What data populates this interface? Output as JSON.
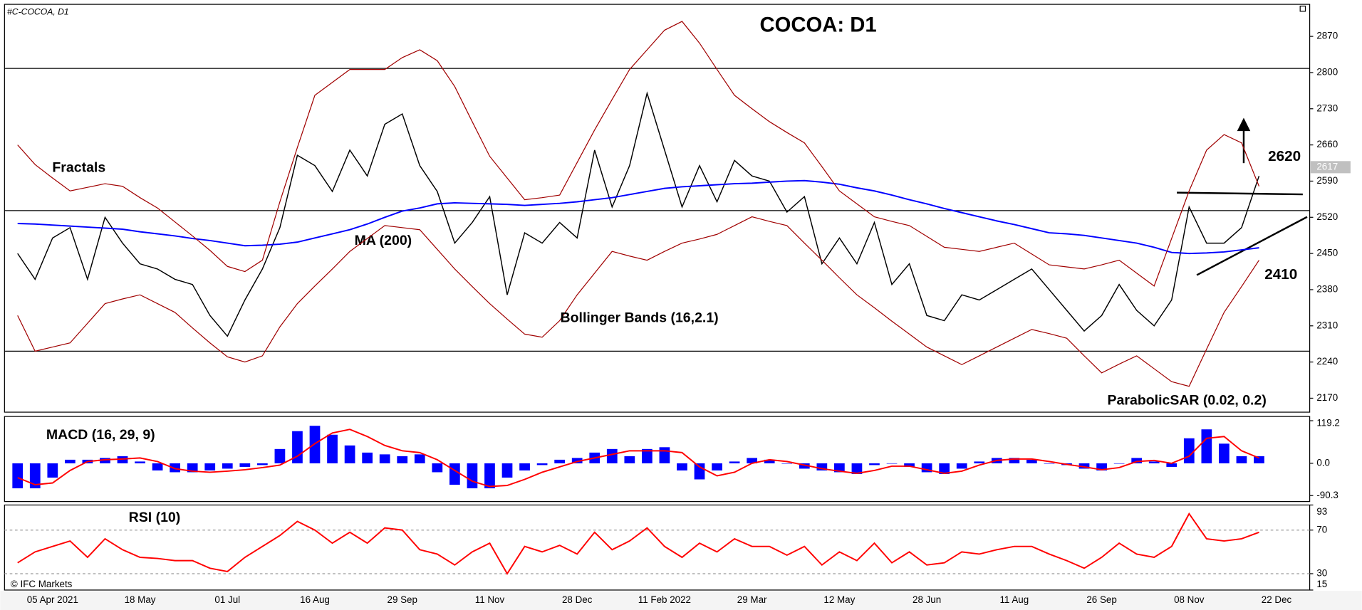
{
  "chart_data": [
    {
      "type": "line",
      "title": "COCOA: D1",
      "subtitle": "#C-COCOA, D1",
      "categories": [
        null,
        null,
        "05 Apr 2021",
        null,
        null,
        null,
        null,
        "18 May",
        null,
        null,
        null,
        null,
        "01 Jul",
        null,
        null,
        null,
        null,
        "16 Aug",
        null,
        null,
        null,
        null,
        "29 Sep",
        null,
        null,
        null,
        null,
        "11 Nov",
        null,
        null,
        null,
        null,
        "28 Dec",
        null,
        null,
        null,
        null,
        "11 Feb 2022",
        null,
        null,
        null,
        null,
        "29 Mar",
        null,
        null,
        null,
        null,
        "12 May",
        null,
        null,
        null,
        null,
        "28 Jun",
        null,
        null,
        null,
        null,
        "11 Aug",
        null,
        null,
        null,
        null,
        "26 Sep",
        null,
        null,
        null,
        null,
        "08 Nov",
        null,
        null,
        null,
        null,
        "22 Dec",
        null
      ],
      "series": [
        {
          "color": "#000000",
          "values": [
            2450,
            2400,
            2480,
            2500,
            2400,
            2520,
            2470,
            2430,
            2420,
            2400,
            2390,
            2330,
            2290,
            2360,
            2420,
            2500,
            2640,
            2620,
            2570,
            2650,
            2600,
            2700,
            2720,
            2620,
            2570,
            2470,
            2510,
            2560,
            2370,
            2490,
            2470,
            2510,
            2480,
            2650,
            2540,
            2620,
            2760,
            2650,
            2540,
            2620,
            2550,
            2630,
            2600,
            2590,
            2530,
            2560,
            2430,
            2480,
            2430,
            2510,
            2390,
            2430,
            2330,
            2320,
            2370,
            2360,
            2380,
            2400,
            2420,
            2380,
            2340,
            2300,
            2330,
            2390,
            2340,
            2310,
            2360,
            2540,
            2470,
            2470,
            2500,
            2600,
            null,
            null
          ]
        },
        {
          "name": "MA (200)",
          "color": "#0000ff",
          "values": [
            2508,
            2507,
            2505,
            2503,
            2501,
            2499,
            2497,
            2492,
            2488,
            2484,
            2479,
            2475,
            2470,
            2465,
            2466,
            2468,
            2472,
            2480,
            2488,
            2496,
            2507,
            2520,
            2532,
            2538,
            2546,
            2548,
            2547,
            2546,
            2545,
            2543,
            2545,
            2547,
            2550,
            2554,
            2558,
            2564,
            2570,
            2576,
            2579,
            2581,
            2583,
            2585,
            2586,
            2588,
            2590,
            2591,
            2588,
            2584,
            2577,
            2571,
            2563,
            2554,
            2546,
            2537,
            2529,
            2521,
            2513,
            2506,
            2498,
            2490,
            2488,
            2485,
            2480,
            2475,
            2470,
            2462,
            2452,
            2450,
            2451,
            2453,
            2457,
            2461,
            null,
            null
          ]
        },
        {
          "name": "Bollinger Bands (16,2.1)",
          "color": "#a00000",
          "upper": [
            2660,
            2622,
            2596,
            2571,
            2578,
            2585,
            2580,
            2558,
            2538,
            2511,
            2484,
            2456,
            2425,
            2415,
            2437,
            2550,
            2655,
            2756,
            2781,
            2806,
            2806,
            2806,
            2829,
            2844,
            2823,
            2773,
            2705,
            2638,
            2596,
            2554,
            2558,
            2563,
            2626,
            2689,
            2748,
            2806,
            2844,
            2882,
            2899,
            2857,
            2806,
            2756,
            2730,
            2705,
            2684,
            2664,
            2618,
            2571,
            2546,
            2521,
            2512,
            2504,
            2483,
            2462,
            2458,
            2454,
            2462,
            2470,
            2449,
            2428,
            2424,
            2420,
            2428,
            2437,
            2412,
            2387,
            2479,
            2571,
            2650,
            2680,
            2664,
            2580,
            null,
            null
          ],
          "lower": [
            2330,
            2261,
            2269,
            2277,
            2315,
            2353,
            2362,
            2370,
            2353,
            2336,
            2306,
            2277,
            2250,
            2240,
            2252,
            2308,
            2353,
            2387,
            2420,
            2454,
            2479,
            2504,
            2500,
            2496,
            2458,
            2420,
            2386,
            2353,
            2323,
            2294,
            2288,
            2320,
            2370,
            2412,
            2454,
            2445,
            2437,
            2454,
            2470,
            2478,
            2487,
            2504,
            2521,
            2512,
            2504,
            2470,
            2437,
            2403,
            2370,
            2345,
            2319,
            2294,
            2269,
            2252,
            2235,
            2252,
            2269,
            2286,
            2303,
            2295,
            2286,
            2252,
            2219,
            2236,
            2252,
            2227,
            2202,
            2193,
            2265,
            2336,
            2386,
            2437,
            null,
            null
          ]
        }
      ],
      "annotations": [
        "Fractals",
        "ParabolicSAR (0.02, 0.2)"
      ],
      "price_labels": [
        2620,
        2410
      ],
      "hlines": [
        2808,
        2533,
        2261
      ],
      "last_price": 2617,
      "watermark": "© IFC Markets",
      "ylim": [
        2143,
        2932
      ],
      "yticks": [
        2170,
        2240,
        2310,
        2380,
        2450,
        2520,
        2590,
        2660,
        2730,
        2800,
        2870
      ],
      "grid": false
    },
    {
      "type": "bar",
      "title": "MACD (16, 29, 9)",
      "series": [
        {
          "kind": "bar",
          "color": "#0000ff",
          "values": [
            -70,
            -70,
            -40,
            10,
            10,
            15,
            20,
            5,
            -20,
            -25,
            -25,
            -20,
            -15,
            -10,
            -5,
            40,
            90,
            105,
            80,
            50,
            30,
            25,
            20,
            25,
            -25,
            -60,
            -70,
            -70,
            -40,
            -20,
            -5,
            10,
            15,
            30,
            40,
            20,
            40,
            45,
            -20,
            -45,
            -20,
            5,
            15,
            10,
            0,
            -15,
            -20,
            -25,
            -30,
            -5,
            0,
            -10,
            -25,
            -30,
            -15,
            5,
            15,
            15,
            10,
            0,
            -5,
            -15,
            -20,
            0,
            15,
            5,
            -10,
            70,
            95,
            55,
            20,
            20,
            null,
            null
          ]
        },
        {
          "kind": "line",
          "color": "#ff0000",
          "values": [
            -40,
            -60,
            -55,
            -20,
            5,
            10,
            12,
            15,
            5,
            -15,
            -22,
            -25,
            -22,
            -18,
            -12,
            -5,
            20,
            55,
            85,
            95,
            75,
            50,
            35,
            30,
            10,
            -20,
            -50,
            -65,
            -62,
            -45,
            -25,
            -10,
            5,
            15,
            25,
            35,
            35,
            35,
            30,
            -10,
            -35,
            -25,
            0,
            10,
            5,
            -5,
            -15,
            -22,
            -28,
            -20,
            -8,
            -8,
            -18,
            -28,
            -22,
            -5,
            8,
            12,
            12,
            5,
            -3,
            -10,
            -18,
            -12,
            5,
            8,
            0,
            20,
            70,
            75,
            35,
            15,
            null,
            null
          ]
        }
      ],
      "ylim": [
        -107,
        131
      ],
      "yticks": [
        119.2,
        {
          "value": 0,
          "label": "0.0"
        },
        -90.3
      ],
      "grid": false
    },
    {
      "type": "line",
      "title": "RSI (10)",
      "series": [
        {
          "kind": "line",
          "color": "#ff0000",
          "values": [
            40,
            50,
            55,
            60,
            45,
            62,
            52,
            45,
            44,
            42,
            42,
            35,
            32,
            45,
            55,
            65,
            78,
            70,
            58,
            68,
            58,
            72,
            70,
            52,
            48,
            38,
            50,
            58,
            30,
            55,
            50,
            56,
            48,
            68,
            52,
            60,
            72,
            55,
            45,
            58,
            50,
            62,
            55,
            55,
            47,
            55,
            38,
            50,
            42,
            58,
            40,
            50,
            38,
            40,
            50,
            48,
            52,
            55,
            55,
            48,
            42,
            35,
            45,
            58,
            48,
            45,
            55,
            85,
            62,
            60,
            62,
            68,
            null,
            null
          ]
        }
      ],
      "ylim": [
        15,
        93
      ],
      "yticks": [
        93,
        70,
        30,
        15
      ],
      "grid": true
    }
  ]
}
